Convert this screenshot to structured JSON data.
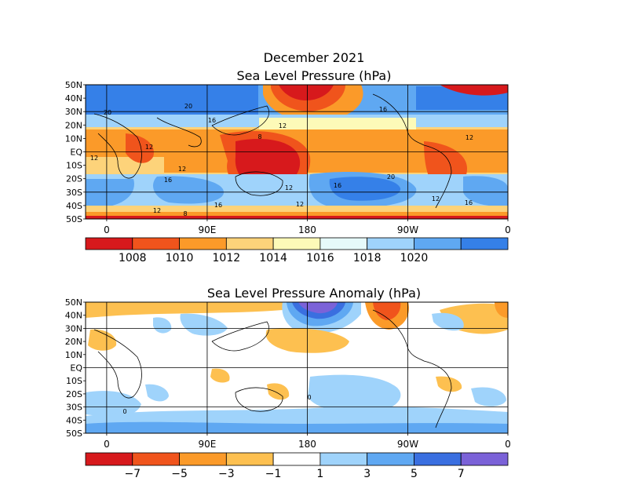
{
  "page": {
    "title": "December 2021",
    "subtitle": "Sea Level Pressure (hPa)"
  },
  "maps": [
    {
      "title": "Sea Level Pressure (hPa)",
      "lat_labels": [
        "50N",
        "40N",
        "30N",
        "20N",
        "10N",
        "EQ",
        "10S",
        "20S",
        "30S",
        "40S",
        "50S"
      ],
      "lon_labels": [
        "0",
        "90E",
        "180",
        "90W",
        "0"
      ],
      "contour_labels": [
        "20",
        "20",
        "16",
        "16",
        "12",
        "12",
        "8",
        "12",
        "12",
        "12",
        "16",
        "16",
        "20",
        "12",
        "12",
        "16",
        "12",
        "16",
        "12",
        "8"
      ],
      "colorbar": {
        "labels": [
          "1008",
          "1010",
          "1012",
          "1014",
          "1016",
          "1018",
          "1020"
        ],
        "colors": [
          "#d7191c",
          "#f0541c",
          "#fb9a29",
          "#fdd37a",
          "#fdfab8",
          "#e6fafa",
          "#9fd3fb",
          "#5fa8f2",
          "#3580e8"
        ]
      }
    },
    {
      "title": "Sea Level Pressure Anomaly (hPa)",
      "lat_labels": [
        "50N",
        "40N",
        "30N",
        "20N",
        "10N",
        "EQ",
        "10S",
        "20S",
        "30S",
        "40S",
        "50S"
      ],
      "lon_labels": [
        "0",
        "90E",
        "180",
        "90W",
        "0"
      ],
      "contour_labels": [
        "0",
        "0"
      ],
      "colorbar": {
        "labels": [
          "−7",
          "−5",
          "−3",
          "−1",
          "1",
          "3",
          "5",
          "7"
        ],
        "colors": [
          "#d7191c",
          "#f0541c",
          "#fb9a29",
          "#fdc050",
          "#ffffff",
          "#9fd3fb",
          "#5fa8f2",
          "#3a6fe0",
          "#7b62d8"
        ]
      }
    }
  ]
}
